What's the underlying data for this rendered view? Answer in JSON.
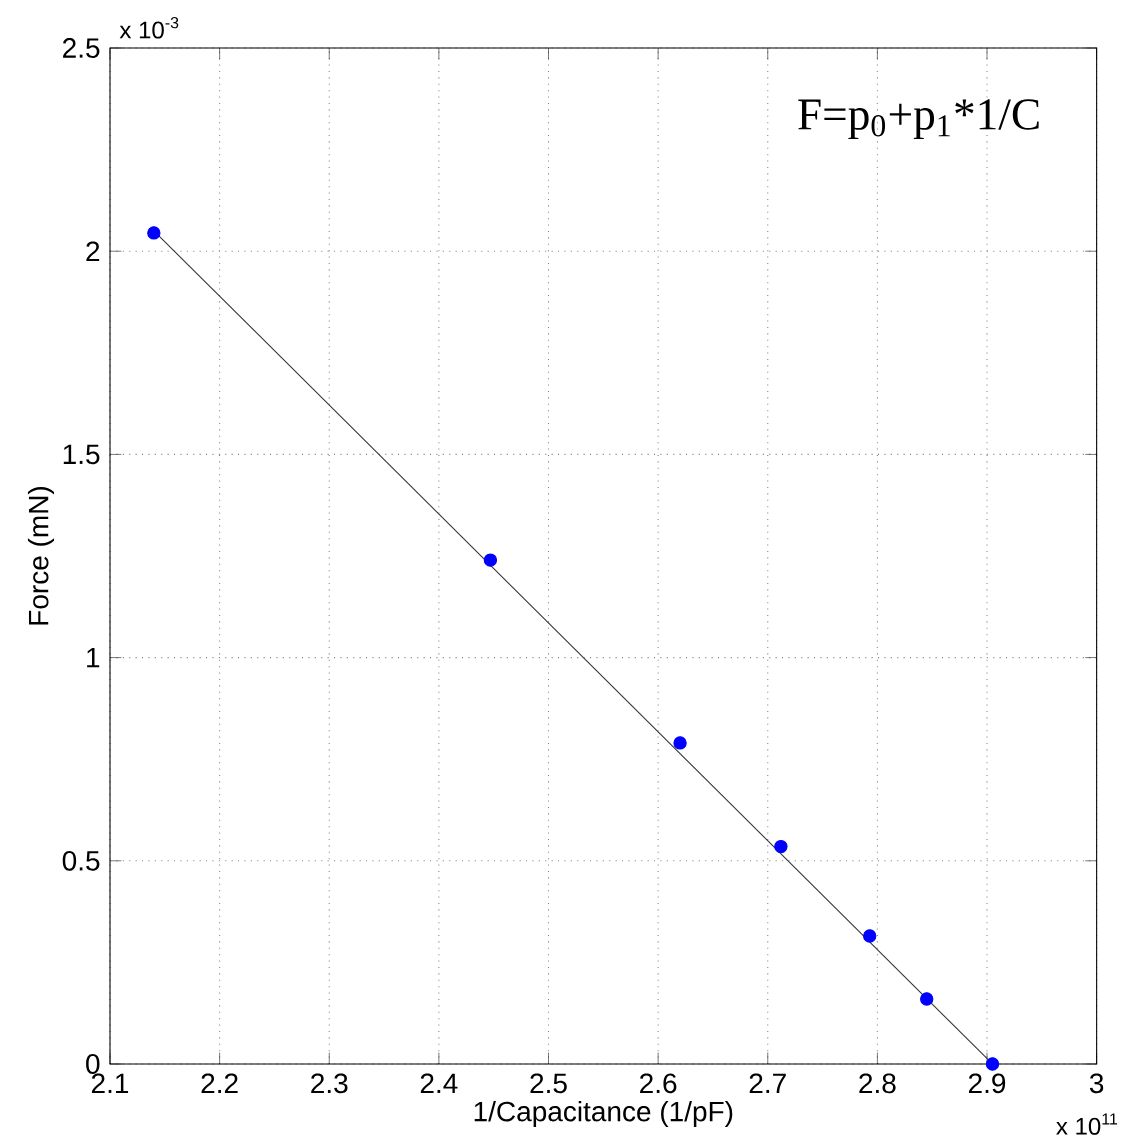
{
  "chart_data": {
    "type": "scatter",
    "xlabel": "1/Capacitance (1/pF)",
    "ylabel": "Force (mN)",
    "xlim": [
      2.1,
      3
    ],
    "ylim": [
      0,
      2.5
    ],
    "xticks": [
      2.1,
      2.2,
      2.3,
      2.4,
      2.5,
      2.6,
      2.7,
      2.8,
      2.9,
      3
    ],
    "yticks": [
      0,
      0.5,
      1,
      1.5,
      2,
      2.5
    ],
    "grid": true,
    "series": [
      {
        "type": "line",
        "color": "#333333",
        "x": [
          2.14,
          2.905
        ],
        "values": [
          2.05,
          0
        ]
      },
      {
        "marker": "circle",
        "color": "#0000ff",
        "x": [
          2.14,
          2.447,
          2.62,
          2.712,
          2.793,
          2.845,
          2.895,
          2.898,
          2.902,
          2.905
        ],
        "values": [
          2.045,
          1.24,
          0.79,
          0.535,
          0.315,
          0.16,
          null,
          null,
          null,
          0.0
        ]
      }
    ],
    "annotations": [
      "F=p$_{0}$+p$_{1}$*1/C",
      "x 10$^{-3}$",
      "x 10$^{11}$"
    ]
  }
}
